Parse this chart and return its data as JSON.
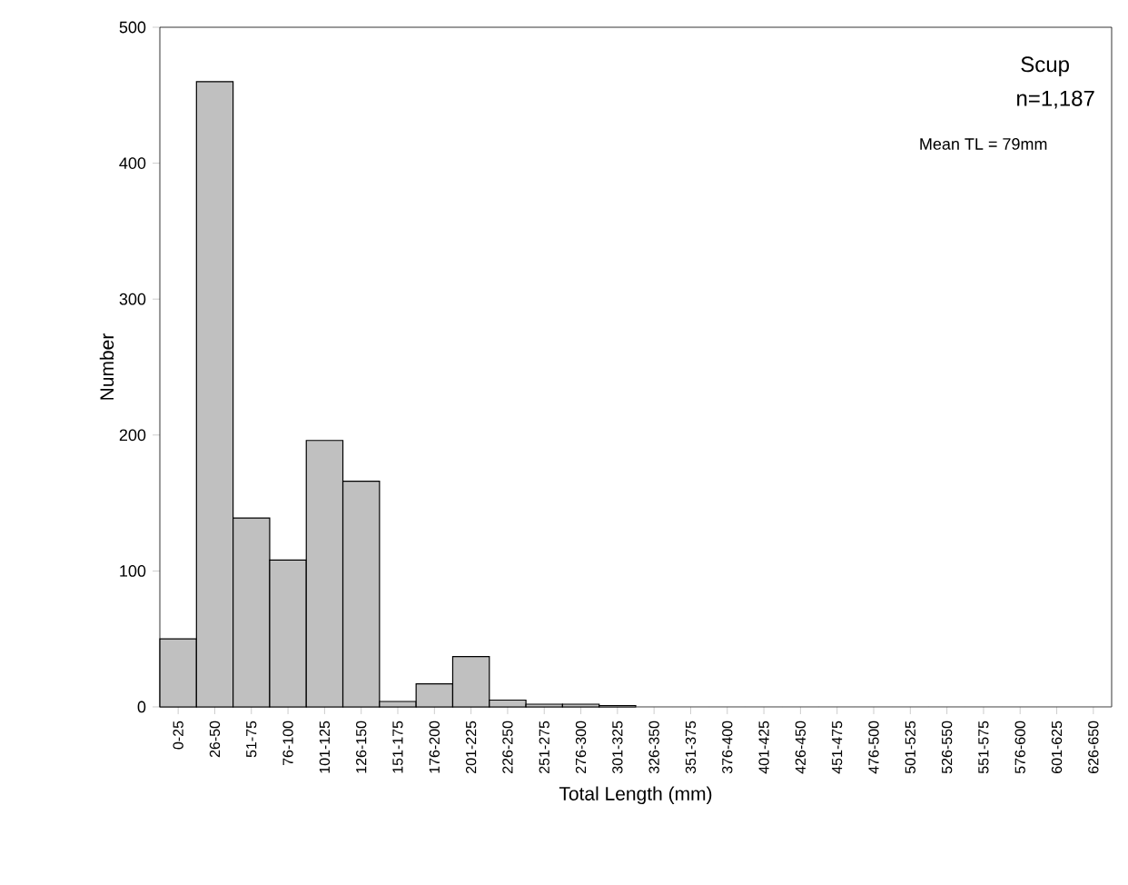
{
  "chart_data": {
    "type": "bar",
    "xlabel": "Total Length (mm)",
    "ylabel": "Number",
    "categories": [
      "0-25",
      "26-50",
      "51-75",
      "76-100",
      "101-125",
      "126-150",
      "151-175",
      "176-200",
      "201-225",
      "226-250",
      "251-275",
      "276-300",
      "301-325",
      "326-350",
      "351-375",
      "376-400",
      "401-425",
      "426-450",
      "451-475",
      "476-500",
      "501-525",
      "526-550",
      "551-575",
      "576-600",
      "601-625",
      "626-650"
    ],
    "values": [
      50,
      460,
      139,
      108,
      196,
      166,
      4,
      17,
      37,
      5,
      2,
      2,
      1,
      0,
      0,
      0,
      0,
      0,
      0,
      0,
      0,
      0,
      0,
      0,
      0,
      0
    ],
    "color": "#c0c0c0",
    "ylim": [
      0,
      500
    ],
    "yticks": [
      0,
      100,
      200,
      300,
      400,
      500
    ],
    "grid": false,
    "annotations": [
      "Scup",
      "n=1,187",
      "Mean TL = 79mm"
    ]
  }
}
